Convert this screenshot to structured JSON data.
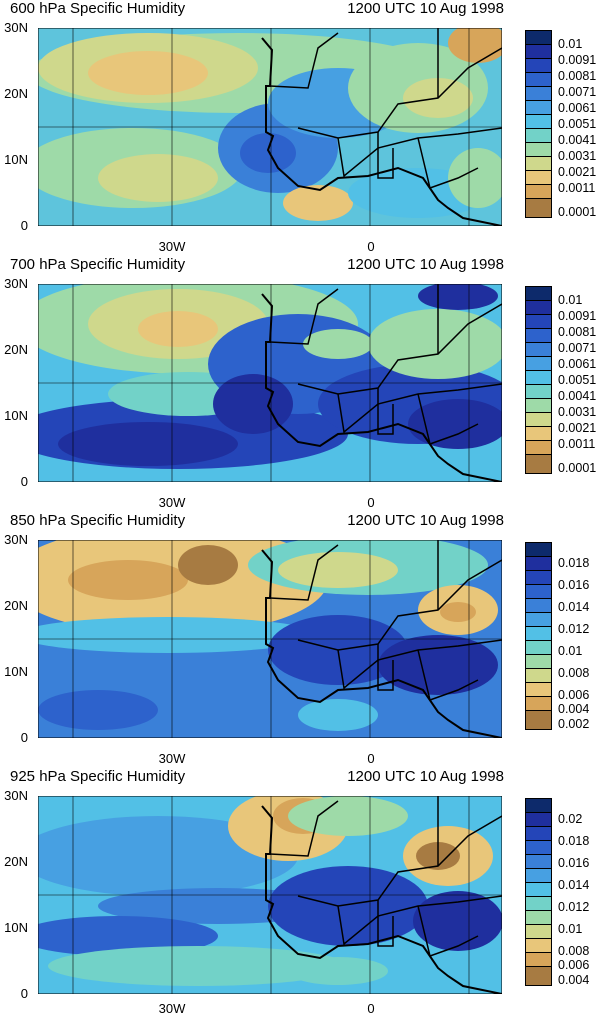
{
  "panels": [
    {
      "title": "600 hPa Specific Humidity",
      "time": "1200 UTC 10 Aug 1998",
      "y_ticks": [
        "30N",
        "20N",
        "10N",
        "0"
      ],
      "x_ticks": [
        "30W",
        "0"
      ],
      "legend_labels": [
        "0.01",
        "0.0091",
        "0.0081",
        "0.0071",
        "0.0061",
        "0.0051",
        "0.0041",
        "0.0031",
        "0.0021",
        "0.0011",
        "0.0001"
      ],
      "legend_colors": [
        "#0d2a6b",
        "#1f2f9e",
        "#2445b8",
        "#2d62cc",
        "#3a80d8",
        "#47a0e2",
        "#52c0e6",
        "#72d2c8",
        "#9edaa8",
        "#cfd88c",
        "#e8c67a",
        "#d7a55a",
        "#a77b42"
      ]
    },
    {
      "title": "700 hPa Specific Humidity",
      "time": "1200 UTC 10 Aug 1998",
      "y_ticks": [
        "30N",
        "20N",
        "10N",
        "0"
      ],
      "x_ticks": [
        "30W",
        "0"
      ],
      "legend_labels": [
        "0.01",
        "0.0091",
        "0.0081",
        "0.0071",
        "0.0061",
        "0.0051",
        "0.0041",
        "0.0031",
        "0.0021",
        "0.0011",
        "0.0001"
      ],
      "legend_colors": [
        "#0d2a6b",
        "#1f2f9e",
        "#2445b8",
        "#2d62cc",
        "#3a80d8",
        "#47a0e2",
        "#52c0e6",
        "#72d2c8",
        "#9edaa8",
        "#cfd88c",
        "#e8c67a",
        "#d7a55a",
        "#a77b42"
      ]
    },
    {
      "title": "850 hPa Specific Humidity",
      "time": "1200 UTC 10 Aug 1998",
      "y_ticks": [
        "30N",
        "20N",
        "10N",
        "0"
      ],
      "x_ticks": [
        "30W",
        "0"
      ],
      "legend_labels": [
        "0.018",
        "0.016",
        "0.014",
        "0.012",
        "0.01",
        "0.008",
        "0.006",
        "0.004",
        "0.002"
      ],
      "legend_colors": [
        "#0d2a6b",
        "#1f2f9e",
        "#2445b8",
        "#2d62cc",
        "#3a80d8",
        "#47a0e2",
        "#52c0e6",
        "#72d2c8",
        "#9edaa8",
        "#cfd88c",
        "#e8c67a",
        "#d7a55a",
        "#a77b42"
      ]
    },
    {
      "title": "925 hPa Specific Humidity",
      "time": "1200 UTC 10 Aug 1998",
      "y_ticks": [
        "30N",
        "20N",
        "10N",
        "0"
      ],
      "x_ticks": [
        "30W",
        "0"
      ],
      "legend_labels": [
        "0.02",
        "0.018",
        "0.016",
        "0.014",
        "0.012",
        "0.01",
        "0.008",
        "0.006",
        "0.004"
      ],
      "legend_colors": [
        "#0d2a6b",
        "#1f2f9e",
        "#2445b8",
        "#2d62cc",
        "#3a80d8",
        "#47a0e2",
        "#52c0e6",
        "#72d2c8",
        "#9edaa8",
        "#cfd88c",
        "#e8c67a",
        "#d7a55a",
        "#a77b42"
      ]
    }
  ]
}
